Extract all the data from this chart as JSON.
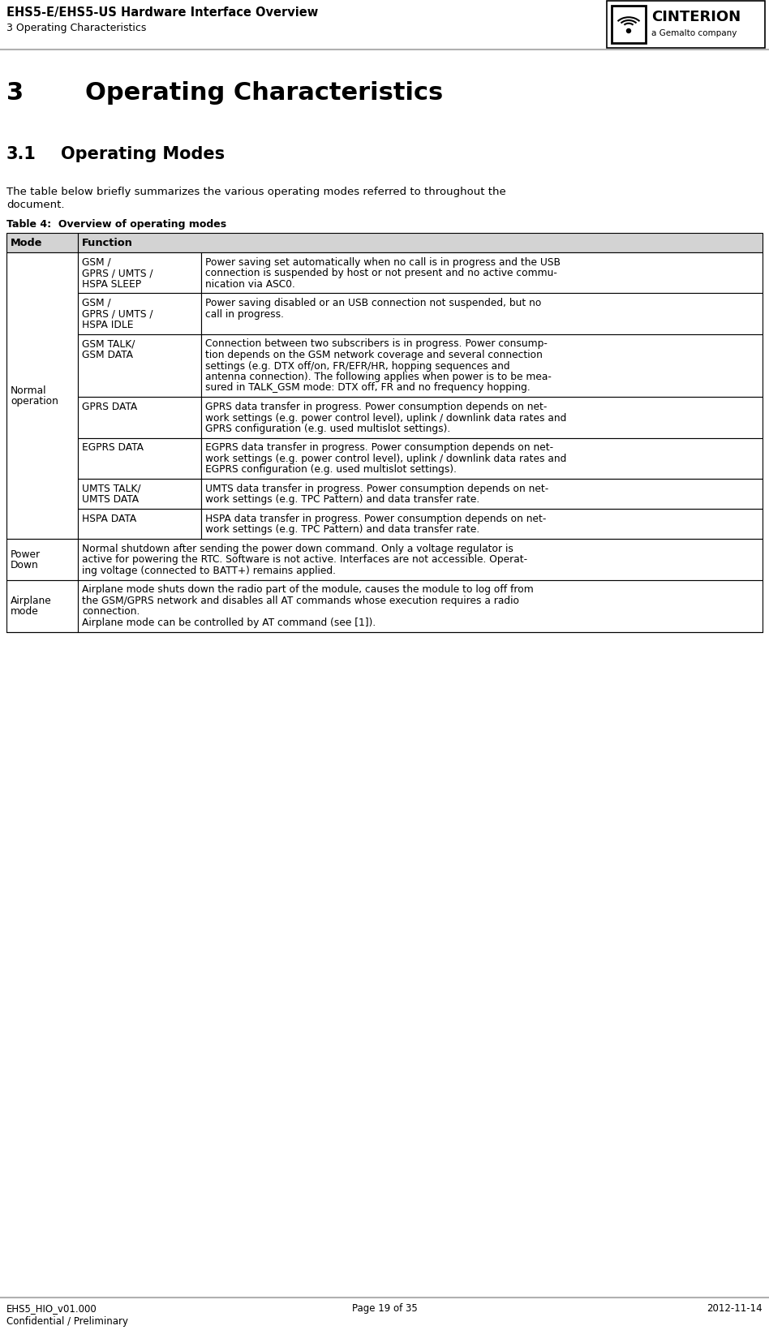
{
  "header_title": "EHS5-E/EHS5-US Hardware Interface Overview",
  "header_subtitle": "3 Operating Characteristics",
  "footer_left1": "EHS5_HIO_v01.000",
  "footer_left2": "Confidential / Preliminary",
  "footer_center": "Page 19 of 35",
  "footer_right": "2012-11-14",
  "section_num": "3",
  "section_title": "Operating Characteristics",
  "subsection_num": "3.1",
  "subsection_title": "Operating Modes",
  "intro_line1": "The table below briefly summarizes the various operating modes referred to throughout the",
  "intro_line2": "document.",
  "table_caption": "Table 4:  Overview of operating modes",
  "col1_header": "Mode",
  "col2_header": "Function",
  "header_bg": "#d3d3d3",
  "rows": [
    {
      "mode": "Normal\noperation",
      "mode_rowspan": 7,
      "sub_rows": [
        {
          "sub_mode": "GSM /\nGPRS / UMTS /\nHSPA SLEEP",
          "function_lines": [
            "Power saving set automatically when no call is in progress and the USB",
            "connection is suspended by host or not present and no active commu-",
            "nication via ASC0."
          ]
        },
        {
          "sub_mode": "GSM /\nGPRS / UMTS /\nHSPA IDLE",
          "function_lines": [
            "Power saving disabled or an USB connection not suspended, but no",
            "call in progress."
          ]
        },
        {
          "sub_mode": "GSM TALK/\nGSM DATA",
          "function_lines": [
            "Connection between two subscribers is in progress. Power consump-",
            "tion depends on the GSM network coverage and several connection",
            "settings (e.g. DTX off/on, FR/EFR/HR, hopping sequences and",
            "antenna connection). The following applies when power is to be mea-",
            "sured in TALK_GSM mode: DTX off, FR and no frequency hopping."
          ]
        },
        {
          "sub_mode": "GPRS DATA",
          "function_lines": [
            "GPRS data transfer in progress. Power consumption depends on net-",
            "work settings (e.g. power control level), uplink / downlink data rates and",
            "GPRS configuration (e.g. used multislot settings)."
          ]
        },
        {
          "sub_mode": "EGPRS DATA",
          "function_lines": [
            "EGPRS data transfer in progress. Power consumption depends on net-",
            "work settings (e.g. power control level), uplink / downlink data rates and",
            "EGPRS configuration (e.g. used multislot settings)."
          ]
        },
        {
          "sub_mode": "UMTS TALK/\nUMTS DATA",
          "function_lines": [
            "UMTS data transfer in progress. Power consumption depends on net-",
            "work settings (e.g. TPC Pattern) and data transfer rate."
          ]
        },
        {
          "sub_mode": "HSPA DATA",
          "function_lines": [
            "HSPA data transfer in progress. Power consumption depends on net-",
            "work settings (e.g. TPC Pattern) and data transfer rate."
          ]
        }
      ]
    },
    {
      "mode": "Power\nDown",
      "mode_rowspan": 1,
      "sub_rows": [
        {
          "sub_mode": "",
          "function_lines": [
            "Normal shutdown after sending the power down command. Only a voltage regulator is",
            "active for powering the RTC. Software is not active. Interfaces are not accessible. Operat-",
            "ing voltage (connected to BATT+) remains applied."
          ]
        }
      ]
    },
    {
      "mode": "Airplane\nmode",
      "mode_rowspan": 1,
      "sub_rows": [
        {
          "sub_mode": "",
          "function_lines": [
            "Airplane mode shuts down the radio part of the module, causes the module to log off from",
            "the GSM/GPRS network and disables all AT commands whose execution requires a radio",
            "connection.",
            "Airplane mode can be controlled by AT command (see [1])."
          ]
        }
      ]
    }
  ]
}
